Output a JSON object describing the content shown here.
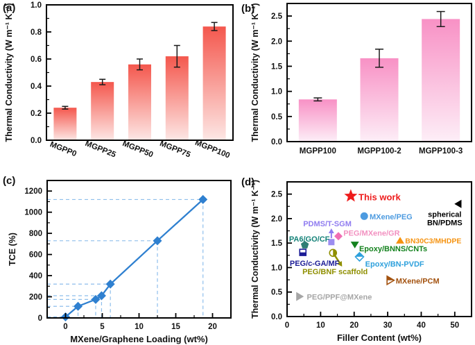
{
  "figure": {
    "background": "#ffffff"
  },
  "chart_data": [
    {
      "panel": "a",
      "panel_label": "(a)",
      "type": "bar",
      "categories": [
        "MGPP0",
        "MGPP25",
        "MGPP50",
        "MGPP75",
        "MGPP100"
      ],
      "values": [
        0.24,
        0.43,
        0.56,
        0.62,
        0.84
      ],
      "errors": [
        0.01,
        0.02,
        0.04,
        0.08,
        0.03
      ],
      "ylabel": "Thermal Conductivity (W m⁻¹ K⁻¹)",
      "ylim": [
        0,
        1.0
      ],
      "ytick_vals": [
        0,
        0.2,
        0.4,
        0.6,
        0.8,
        1.0
      ],
      "ytick_labels": [
        "0.0",
        "0.2",
        "0.4",
        "0.6",
        "0.8",
        "1.0"
      ],
      "yminor_step": 0.1,
      "bar_gradient_top": "#f4574d",
      "bar_gradient_bottom": "#fde7e5",
      "xtick_rotation": 22,
      "grid": false
    },
    {
      "panel": "b",
      "panel_label": "(b)",
      "type": "bar",
      "categories": [
        "MGPP100",
        "MGPP100-2",
        "MGPP100-3"
      ],
      "values": [
        0.84,
        1.66,
        2.44
      ],
      "errors": [
        0.03,
        0.18,
        0.15
      ],
      "ylabel": "Thermal Conductivity (W m⁻¹ K⁻¹)",
      "ylim": [
        0,
        2.75
      ],
      "ytick_vals": [
        0,
        0.5,
        1.0,
        1.5,
        2.0,
        2.5
      ],
      "ytick_labels": [
        "0.0",
        "0.5",
        "1.0",
        "1.5",
        "2.0",
        "2.5"
      ],
      "yminor_step": 0.25,
      "bar_gradient_top": "#f891c5",
      "bar_gradient_bottom": "#fdeef7",
      "xtick_rotation": 0,
      "grid": false
    },
    {
      "panel": "c",
      "panel_label": "(c)",
      "type": "line",
      "x": [
        0,
        1.7,
        4.1,
        4.9,
        6.1,
        12.5,
        18.7
      ],
      "y": [
        10,
        110,
        175,
        210,
        320,
        730,
        1120
      ],
      "xlabel": "MXene/Graphene Loading (wt%)",
      "ylabel": "TCE (%)",
      "xlim": [
        -2.5,
        22.5
      ],
      "ylim": [
        0,
        1300
      ],
      "xtick_vals": [
        0,
        5,
        10,
        15,
        20
      ],
      "xtick_labels": [
        "0",
        "5",
        "10",
        "15",
        "20"
      ],
      "ytick_vals": [
        0,
        200,
        400,
        600,
        800,
        1000,
        1200
      ],
      "ytick_labels": [
        "0",
        "200",
        "400",
        "600",
        "800",
        "1000",
        "1200"
      ],
      "xminor_step": 2.5,
      "yminor_step": 100,
      "line_color": "#2f80d0",
      "guide_color": "#8ebfec",
      "marker": "diamond",
      "grid": false,
      "guides": true
    },
    {
      "panel": "d",
      "panel_label": "(d)",
      "type": "scatter",
      "xlabel": "Filler Content (wt%)",
      "ylabel": "Thermal Conductivity (W m⁻¹ K⁻¹)",
      "xlim": [
        0,
        55
      ],
      "ylim": [
        0,
        2.75
      ],
      "xtick_vals": [
        0,
        10,
        20,
        30,
        40,
        50
      ],
      "xtick_labels": [
        "0",
        "10",
        "20",
        "30",
        "40",
        "50"
      ],
      "ytick_vals": [
        0,
        0.5,
        1.0,
        1.5,
        2.0,
        2.5
      ],
      "ytick_labels": [
        "0.0",
        "0.5",
        "1.0",
        "1.5",
        "2.0",
        "2.5"
      ],
      "xminor_step": 5,
      "yminor_step": 0.25,
      "points": [
        {
          "name": "this-work",
          "x": 19,
          "y": 2.46,
          "marker": "star",
          "color": "#ee1c1c",
          "size": 10,
          "label": {
            "lines": [
              "This work"
            ],
            "x": 21.3,
            "y": 2.44,
            "anchor": "start",
            "color": "#ee1c1c",
            "size": 13
          }
        },
        {
          "name": "mxene-peg",
          "x": 23,
          "y": 2.05,
          "marker": "circle",
          "color": "#4d9be0",
          "size": 5.5,
          "label": {
            "lines": [
              "MXene/PEG"
            ],
            "x": 24.6,
            "y": 2.04,
            "anchor": "start",
            "color": "#4d9be0",
            "size": 11
          }
        },
        {
          "name": "spherical-bn-pdms",
          "x": 51,
          "y": 2.3,
          "marker": "triangle-left",
          "color": "#000000",
          "size": 6,
          "label": {
            "lines": [
              "spherical",
              "BN/PDMS"
            ],
            "x": 47,
            "y": 2.09,
            "anchor": "middle",
            "color": "#000000",
            "size": 11
          }
        },
        {
          "name": "pdms-t-sgm",
          "x": 13.2,
          "y": 1.52,
          "marker": "square",
          "color": "#9c8df0",
          "size": 4.5,
          "label": {
            "lines": [
              "PDMS/T-SGM"
            ],
            "x": 12,
            "y": 1.9,
            "anchor": "middle",
            "color": "#8f7cf0",
            "size": 11
          }
        },
        {
          "name": "peg-mxene-gr",
          "x": 15.3,
          "y": 1.64,
          "marker": "diamond",
          "color": "#f06eb4",
          "size": 6,
          "label": {
            "lines": [
              "PEG/MXene/GR"
            ],
            "x": 16.8,
            "y": 1.71,
            "anchor": "start",
            "color": "#f291c0",
            "size": 11
          }
        },
        {
          "name": "pa6-go-cf",
          "x": 5.3,
          "y": 1.46,
          "marker": "pentagon",
          "color": "#2e7d74",
          "size": 6,
          "label": {
            "lines": [
              "PA6/GO/CF"
            ],
            "x": 0.6,
            "y": 1.59,
            "anchor": "start",
            "color": "#148278",
            "size": 11
          }
        },
        {
          "name": "peg-c-ga-mf",
          "x": 4.7,
          "y": 1.31,
          "marker": "square-half-bottom",
          "color": "#1c1c96",
          "size": 4.5,
          "label": {
            "lines": [
              "PEG/c-GA/MF"
            ],
            "x": 0.8,
            "y": 1.09,
            "anchor": "start",
            "color": "#1c1c96",
            "size": 11
          }
        },
        {
          "name": "peg-bnf-scaffold",
          "x": 13.7,
          "y": 1.3,
          "marker": "circle-half-right",
          "color": "#8f8f00",
          "size": 5,
          "label": {
            "lines": [
              "PEG/BNF scaffold"
            ],
            "x": 14.3,
            "y": 0.92,
            "anchor": "middle",
            "color": "#8f8f00",
            "size": 11
          }
        },
        {
          "name": "epoxy-bnns-cnts",
          "x": 20.2,
          "y": 1.47,
          "marker": "triangle-down",
          "color": "#14821e",
          "size": 6,
          "label": {
            "lines": [
              "Epoxy/BNNS/CNTs"
            ],
            "x": 21.5,
            "y": 1.39,
            "anchor": "start",
            "color": "#14821e",
            "size": 11
          }
        },
        {
          "name": "epoxy-bn-pvdf",
          "x": 21.6,
          "y": 1.22,
          "marker": "diamond-half-top",
          "color": "#2da0dc",
          "size": 6,
          "label": {
            "lines": [
              "Epoxy/BN-PVDF"
            ],
            "x": 23.3,
            "y": 1.08,
            "anchor": "start",
            "color": "#2da0dc",
            "size": 11
          }
        },
        {
          "name": "bn30c3-mhdpe",
          "x": 33.7,
          "y": 1.55,
          "marker": "triangle-up",
          "color": "#f5920f",
          "size": 6,
          "label": {
            "lines": [
              "BN30C3/MHDPE"
            ],
            "x": 35.2,
            "y": 1.55,
            "anchor": "start",
            "color": "#f5920f",
            "size": 10.5
          }
        },
        {
          "name": "mxene-pcm",
          "x": 30.8,
          "y": 0.74,
          "marker": "triangle-right-half",
          "color": "#a3520f",
          "size": 6,
          "label": {
            "lines": [
              "MXene/PCM"
            ],
            "x": 32.4,
            "y": 0.73,
            "anchor": "start",
            "color": "#a3520f",
            "size": 11
          }
        },
        {
          "name": "peg-ppf-mxene",
          "x": 3.8,
          "y": 0.41,
          "marker": "triangle-right",
          "color": "#a6a6a6",
          "size": 6.5,
          "label": {
            "lines": [
              "PEG/PPF@MXene"
            ],
            "x": 5.9,
            "y": 0.4,
            "anchor": "start",
            "color": "#a6a6a6",
            "size": 11
          }
        }
      ],
      "arrows": [
        {
          "name": "pdms-arrow",
          "x1": 13.2,
          "y1": 1.6,
          "x2": 13.2,
          "y2": 1.8,
          "color": "#8f7cf0",
          "width": 2
        },
        {
          "name": "bnf-arrow",
          "x1": 14.3,
          "y1": 1.24,
          "x2": 16.4,
          "y2": 1.02,
          "color": "#8f8f00",
          "width": 2.5
        }
      ],
      "grid": false
    }
  ]
}
